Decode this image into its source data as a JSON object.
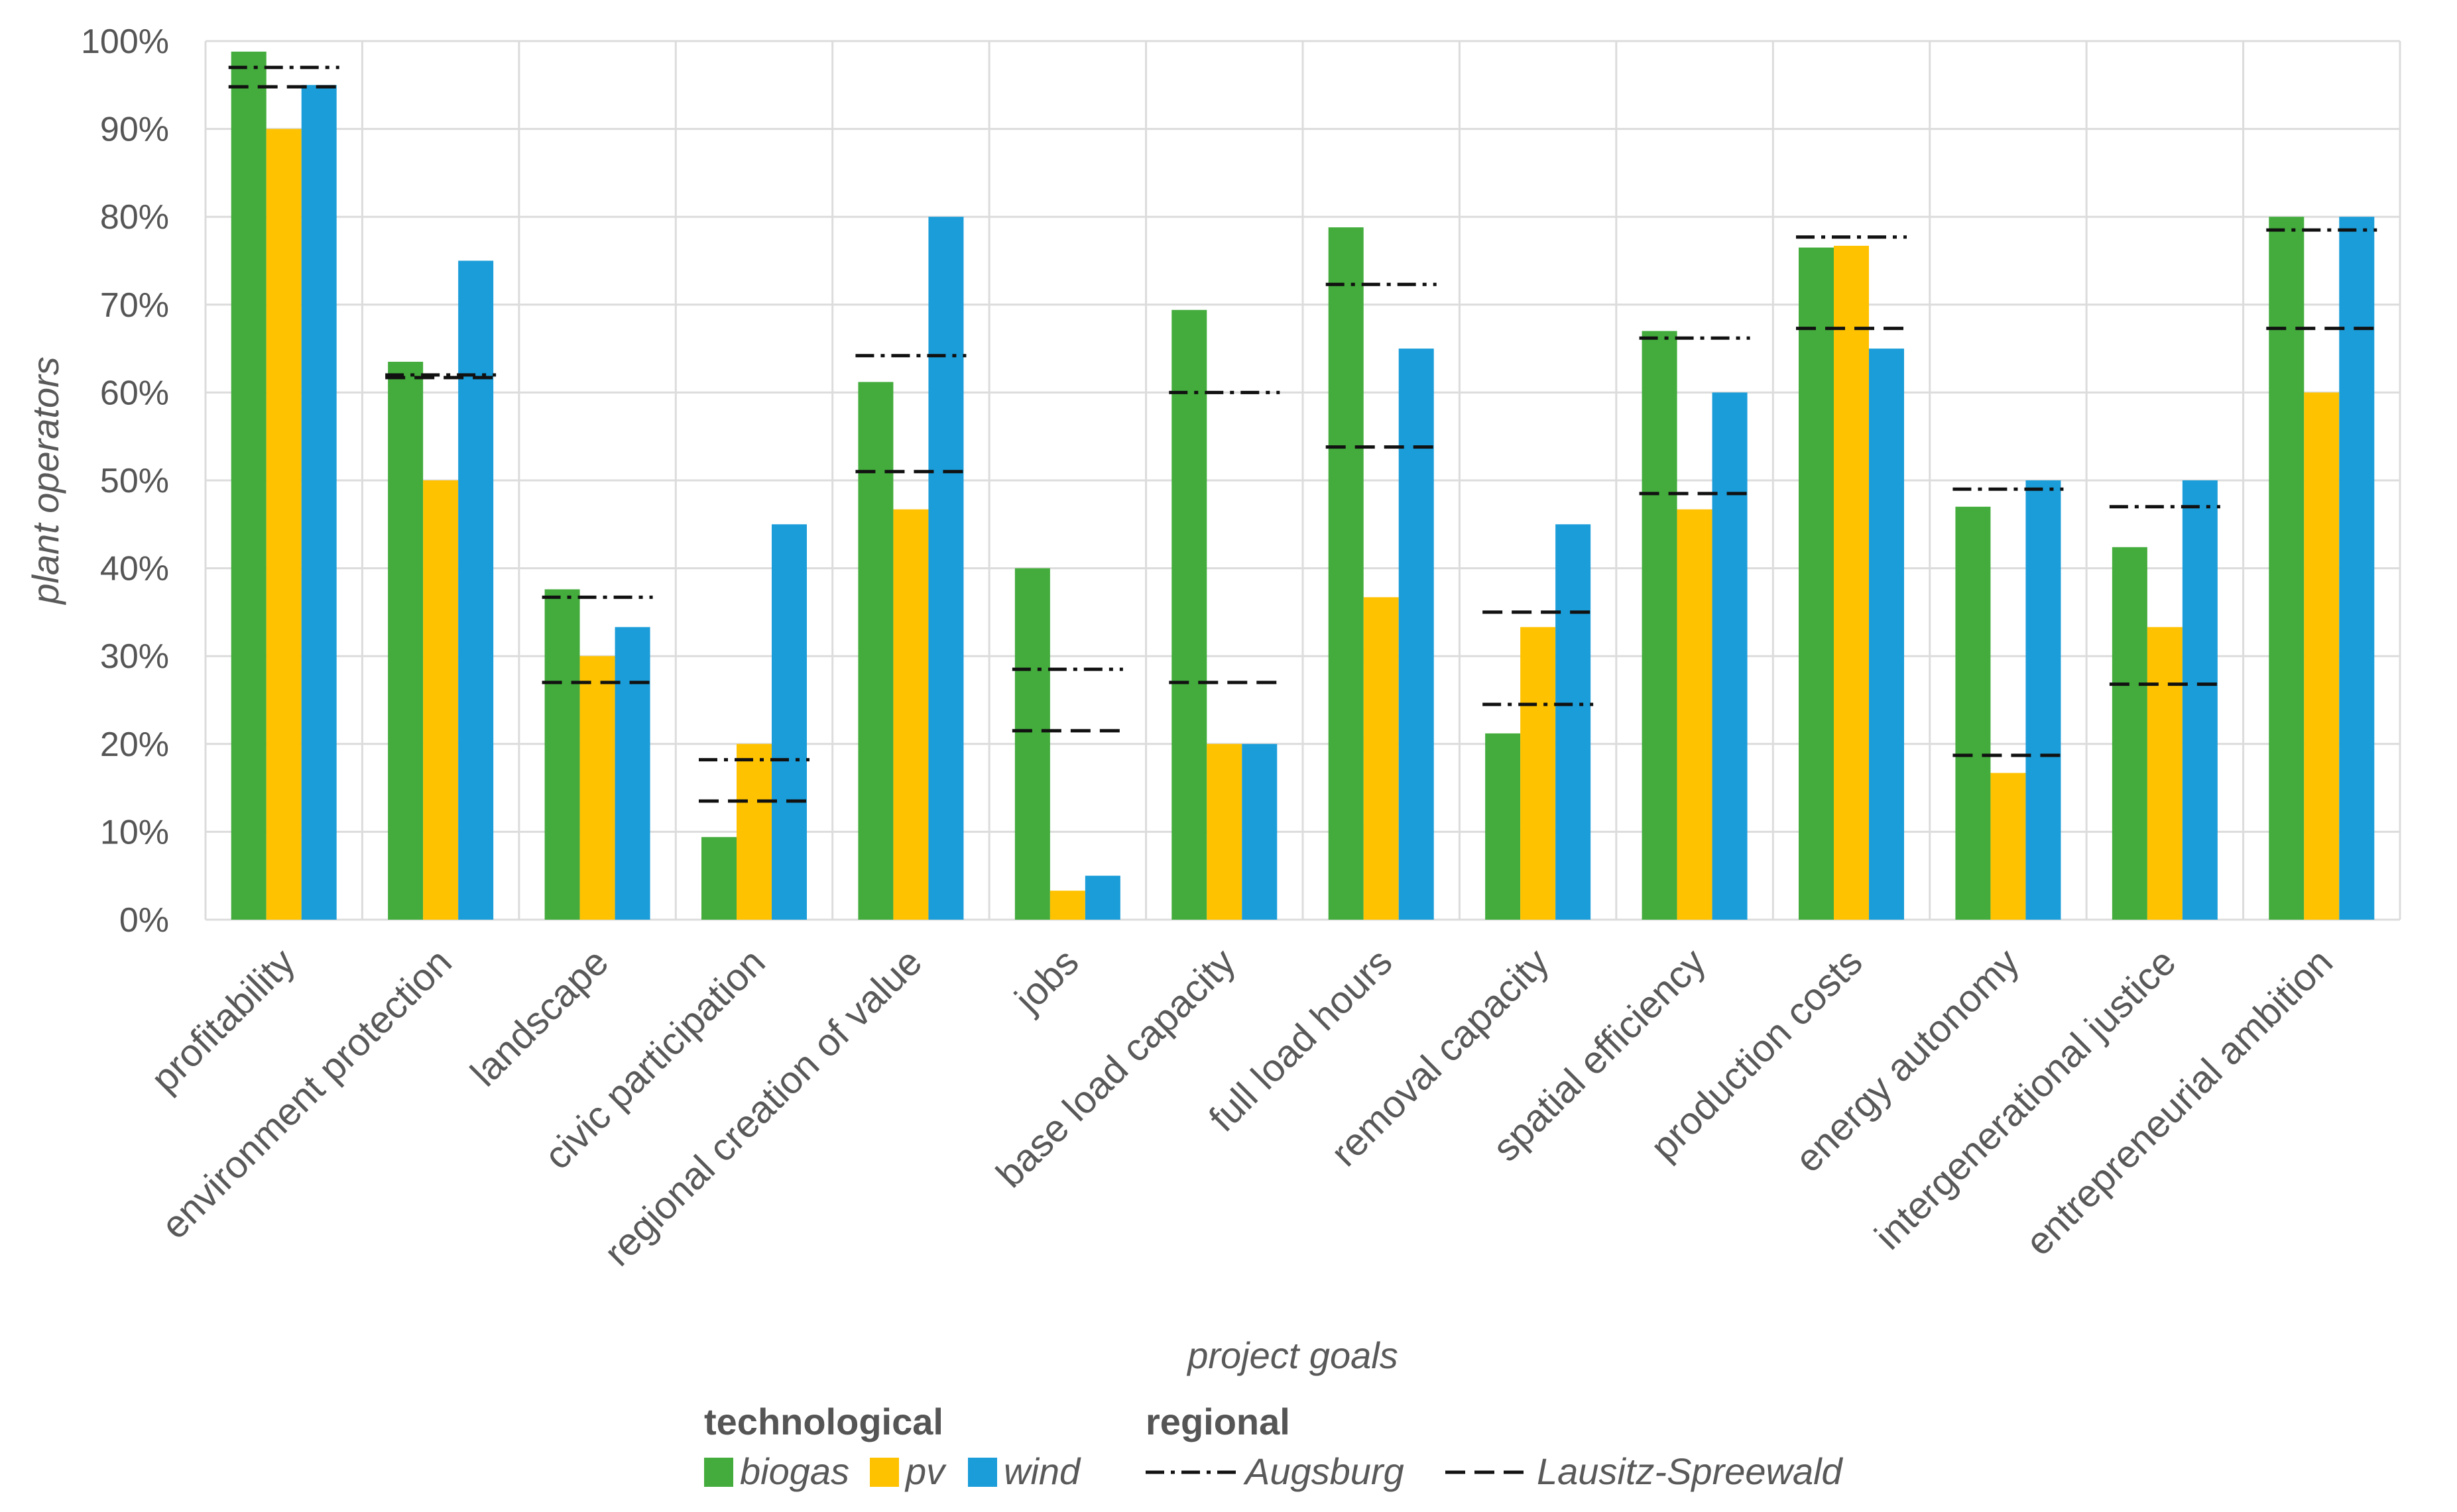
{
  "chart_data": {
    "type": "bar",
    "title": "",
    "xlabel": "project goals",
    "ylabel": "plant operators",
    "ylim": [
      0,
      100
    ],
    "y_ticks": [
      "0%",
      "10%",
      "20%",
      "30%",
      "40%",
      "50%",
      "60%",
      "70%",
      "80%",
      "90%",
      "100%"
    ],
    "categories": [
      "profitability",
      "environment protection",
      "landscape",
      "civic participation",
      "regional creation of value",
      "jobs",
      "base load capacity",
      "full load hours",
      "removal capacity",
      "spatial efficiency",
      "production costs",
      "energy autonomy",
      "intergenerational justice",
      "entrepreneurial ambition"
    ],
    "series": [
      {
        "name": "biogas",
        "group": "technological",
        "color": "#43AC3C",
        "values": [
          98.8,
          63.5,
          37.6,
          9.4,
          61.2,
          40.0,
          69.4,
          78.8,
          21.2,
          67.0,
          76.5,
          47.0,
          42.4,
          80.0
        ]
      },
      {
        "name": "pv",
        "group": "technological",
        "color": "#FFC200",
        "values": [
          90.0,
          50.0,
          30.0,
          20.0,
          46.7,
          3.3,
          20.0,
          36.7,
          33.3,
          46.7,
          76.7,
          16.7,
          33.3,
          60.0
        ]
      },
      {
        "name": "wind",
        "group": "technological",
        "color": "#1B9DD9",
        "values": [
          95.0,
          75.0,
          33.3,
          45.0,
          80.0,
          5.0,
          20.0,
          65.0,
          45.0,
          60.0,
          65.0,
          50.0,
          50.0,
          80.0
        ]
      }
    ],
    "reference_lines": [
      {
        "name": "Augsburg",
        "group": "regional",
        "style": "dash-dot",
        "color": "#111111",
        "values": [
          97.0,
          62.0,
          36.7,
          18.2,
          64.2,
          28.5,
          60.0,
          72.3,
          24.5,
          66.2,
          77.7,
          49.0,
          47.0,
          78.5
        ]
      },
      {
        "name": "Lausitz-Spreewald",
        "group": "regional",
        "style": "dashed",
        "color": "#111111",
        "values": [
          94.8,
          61.7,
          27.0,
          13.5,
          51.0,
          21.5,
          27.0,
          53.8,
          35.0,
          48.5,
          67.3,
          18.7,
          26.8,
          67.3
        ]
      }
    ],
    "legend": {
      "technological_heading": "technological",
      "regional_heading": "regional",
      "position": "bottom-center"
    },
    "grid": true
  }
}
